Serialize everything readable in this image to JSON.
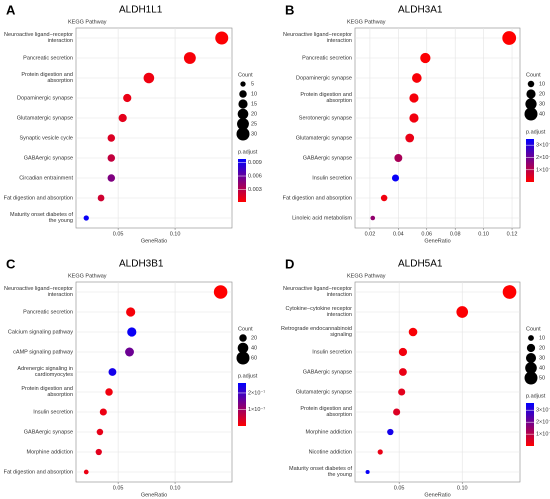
{
  "chart_data": [
    {
      "type": "dot",
      "panel_label": "A",
      "title": "ALDH1L1",
      "y_title": "KEGG Pathway",
      "x_label": "GeneRatio",
      "categories": [
        "Neuroactive ligand−receptor\ninteraction",
        "Pancreatic secretion",
        "Protein digestion and\nabsorption",
        "Dopaminergic synapse",
        "Glutamatergic synapse",
        "Synaptic vesicle cycle",
        "GABAergic synapse",
        "Circadian entrainment",
        "Fat digestion and absorption",
        "Maturity onset diabetes of\nthe young"
      ],
      "values": [
        0.141,
        0.113,
        0.077,
        0.058,
        0.054,
        0.044,
        0.044,
        0.044,
        0.035,
        0.022
      ],
      "sizes": [
        30,
        25,
        20,
        12,
        12,
        10,
        10,
        10,
        8,
        5
      ],
      "p_adjust": [
        0.0003,
        0.0005,
        0.0008,
        0.001,
        0.0012,
        0.0015,
        0.0025,
        0.005,
        0.002,
        0.0095
      ],
      "xlim": [
        0.013,
        0.15
      ],
      "xticks": [
        0.05,
        {
          "value": 0.1,
          "label": "0.10"
        }
      ],
      "size_title": "Count",
      "size_ticks": [
        5,
        10,
        15,
        20,
        25,
        30
      ],
      "color_title": "p.adjust",
      "clim": [
        0.0002,
        0.0098
      ],
      "cticks": [
        0.003,
        0.006,
        0.009
      ],
      "low_color": "#ff0000",
      "high_color": "#0000ff",
      "grid": true
    },
    {
      "type": "dot",
      "panel_label": "B",
      "title": "ALDH3A1",
      "y_title": "KEGG Pathway",
      "x_label": "GeneRatio",
      "categories": [
        "Neuroactive ligand−receptor\ninteraction",
        "Pancreatic secretion",
        "Dopaminergic synapse",
        "Protein digestion and\nabsorption",
        "Serotonergic synapse",
        "Glutamatergic synapse",
        "GABAergic synapse",
        "Insulin secretion",
        "Fat digestion and absorption",
        "Linoleic acid metabolism"
      ],
      "values": [
        0.118,
        0.059,
        0.053,
        0.051,
        0.051,
        0.048,
        0.04,
        0.038,
        0.03,
        0.022
      ],
      "sizes": [
        45,
        25,
        22,
        20,
        20,
        18,
        15,
        12,
        10,
        5
      ],
      "p_adjust": [
        1e-09,
        5e-09,
        1e-08,
        1.5e-08,
        2e-08,
        3e-08,
        1.2e-07,
        3.4e-07,
        2e-08,
        1.5e-07
      ],
      "xlim": [
        0.0095,
        0.1256
      ],
      "xticks": [
        0.02,
        0.04,
        0.06,
        0.08,
        {
          "value": 0.1,
          "label": "0.10"
        },
        0.12
      ],
      "size_title": "Count",
      "size_ticks": [
        10,
        20,
        30,
        40
      ],
      "color_title": "p.adjust",
      "clim": [
        1e-09,
        3.5e-07
      ],
      "cticks": [
        {
          "value": 1e-07,
          "label": "1×10⁻⁷"
        },
        {
          "value": 2e-07,
          "label": "2×10⁻⁷"
        },
        {
          "value": 3e-07,
          "label": "3×10⁻⁷"
        }
      ],
      "low_color": "#ff0000",
      "high_color": "#0000ff",
      "grid": true
    },
    {
      "type": "dot",
      "panel_label": "C",
      "title": "ALDH3B1",
      "y_title": "KEGG Pathway",
      "x_label": "GeneRatio",
      "categories": [
        "Neuroactive ligand−receptor\ninteraction",
        "Pancreatic secretion",
        "Calcium signaling pathway",
        "cAMP signaling pathway",
        "Adrenergic signaling in\ncardiomyocytes",
        "Protein digestion and\nabsorption",
        "Insulin secretion",
        "GABAergic synapse",
        "Morphine addiction",
        "Fat digestion and absorption"
      ],
      "values": [
        0.14,
        0.061,
        0.062,
        0.06,
        0.045,
        0.042,
        0.037,
        0.034,
        0.033,
        0.022
      ],
      "sizes": [
        65,
        30,
        30,
        28,
        22,
        20,
        18,
        15,
        14,
        8
      ],
      "p_adjust": [
        1e-09,
        1e-08,
        2.5e-07,
        1.5e-07,
        2.4e-07,
        1.5e-08,
        2e-08,
        2.5e-08,
        3e-08,
        2e-08
      ],
      "xlim": [
        0.013,
        0.15
      ],
      "xticks": [
        0.05,
        {
          "value": 0.1,
          "label": "0.10"
        }
      ],
      "size_title": "Count",
      "size_ticks": [
        20,
        40,
        60
      ],
      "color_title": "p.adjust",
      "clim": [
        1e-09,
        2.6e-07
      ],
      "cticks": [
        {
          "value": 1e-07,
          "label": "1×10⁻⁷"
        },
        {
          "value": 2e-07,
          "label": "2×10⁻⁷"
        }
      ],
      "low_color": "#ff0000",
      "high_color": "#0000ff",
      "grid": true
    },
    {
      "type": "dot",
      "panel_label": "D",
      "title": "ALDH5A1",
      "y_title": "KEGG Pathway",
      "x_label": "GeneRatio",
      "categories": [
        "Neuroactive ligand−receptor\ninteraction",
        "Cytokine−cytokine receptor\ninteraction",
        "Retrograde endocannabinoid\nsignaling",
        "Insulin secretion",
        "GABAergic synapse",
        "Glutamatergic synapse",
        "Protein digestion and\nabsorption",
        "Morphine addiction",
        "Nicotine addiction",
        "Maturity onset diabetes of\nthe young"
      ],
      "values": [
        0.1375,
        0.1,
        0.061,
        0.053,
        0.053,
        0.052,
        0.048,
        0.043,
        0.035,
        0.025
      ],
      "sizes": [
        55,
        40,
        22,
        20,
        18,
        15,
        15,
        12,
        8,
        5
      ],
      "p_adjust": [
        1e-12,
        5e-12,
        1e-11,
        2e-11,
        3e-11,
        4e-11,
        5e-11,
        3.3e-10,
        3e-11,
        3.5e-10
      ],
      "xlim": [
        0.015,
        0.1458
      ],
      "xticks": [
        0.05,
        {
          "value": 0.1,
          "label": "0.10"
        }
      ],
      "size_title": "Count",
      "size_ticks": [
        10,
        20,
        30,
        40,
        50
      ],
      "color_title": "p.adjust",
      "clim": [
        1e-12,
        3.6e-10
      ],
      "cticks": [
        {
          "value": 1e-10,
          "label": "1×10⁻¹⁰"
        },
        {
          "value": 2e-10,
          "label": "2×10⁻¹⁰"
        },
        {
          "value": 3e-10,
          "label": "3×10⁻¹⁰"
        }
      ],
      "low_color": "#ff0000",
      "high_color": "#0000ff",
      "grid": true
    }
  ]
}
